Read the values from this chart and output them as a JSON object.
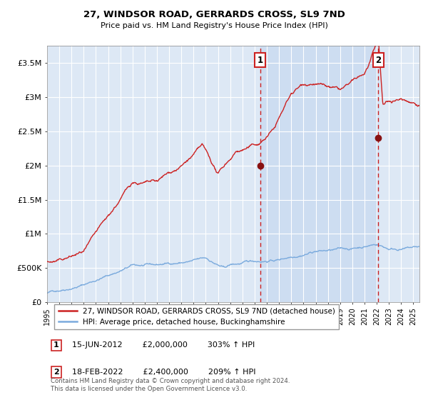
{
  "title": "27, WINDSOR ROAD, GERRARDS CROSS, SL9 7ND",
  "subtitle": "Price paid vs. HM Land Registry's House Price Index (HPI)",
  "legend_line1": "27, WINDSOR ROAD, GERRARDS CROSS, SL9 7ND (detached house)",
  "legend_line2": "HPI: Average price, detached house, Buckinghamshire",
  "ann1": {
    "label": "1",
    "date": "15-JUN-2012",
    "price": "£2,000,000",
    "hpi": "303% ↑ HPI",
    "x_year": 2012.46,
    "y_val": 2000000
  },
  "ann2": {
    "label": "2",
    "date": "18-FEB-2022",
    "price": "£2,400,000",
    "hpi": "209% ↑ HPI",
    "x_year": 2022.13,
    "y_val": 2400000
  },
  "footnote": "Contains HM Land Registry data © Crown copyright and database right 2024.\nThis data is licensed under the Open Government Licence v3.0.",
  "hpi_color": "#7aaadd",
  "price_color": "#cc2222",
  "dot_color": "#881111",
  "vline_color": "#cc2222",
  "background_plot": "#dde8f5",
  "background_fig": "#ffffff",
  "grid_color": "#ffffff",
  "x_start": 1995.0,
  "x_end": 2025.5,
  "y_min": 0,
  "y_max": 3750000,
  "yticks": [
    0,
    500000,
    1000000,
    1500000,
    2000000,
    2500000,
    3000000,
    3500000
  ],
  "ytick_labels": [
    "£0",
    "£500K",
    "£1M",
    "£1.5M",
    "£2M",
    "£2.5M",
    "£3M",
    "£3.5M"
  ],
  "xtick_years": [
    1995,
    1996,
    1997,
    1998,
    1999,
    2000,
    2001,
    2002,
    2003,
    2004,
    2005,
    2006,
    2007,
    2008,
    2009,
    2010,
    2011,
    2012,
    2013,
    2014,
    2015,
    2016,
    2017,
    2018,
    2019,
    2020,
    2021,
    2022,
    2023,
    2024,
    2025
  ]
}
